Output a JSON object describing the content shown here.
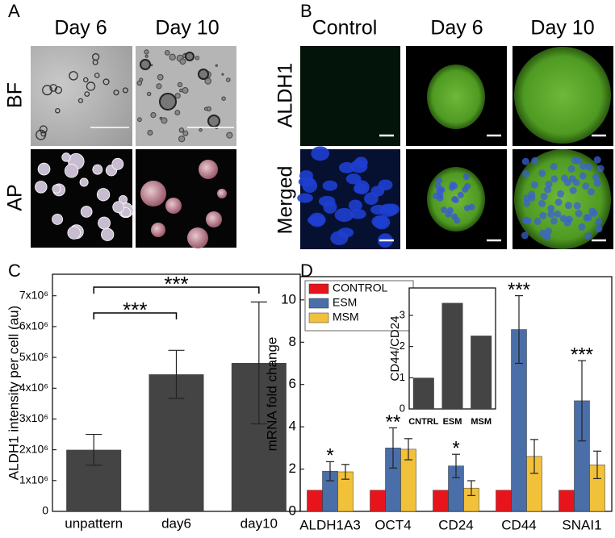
{
  "panel_labels": [
    "A",
    "B",
    "C",
    "D"
  ],
  "panel_a": {
    "columns": [
      "Day 6",
      "Day 10"
    ],
    "rows": [
      "BF",
      "AP"
    ]
  },
  "panel_b": {
    "columns": [
      "Control",
      "Day 6",
      "Day 10"
    ],
    "rows": [
      "ALDH1",
      "Merged"
    ]
  },
  "chart_data": [
    {
      "type": "bar",
      "ylabel": "ALDH1 intensity per cell (au)",
      "categories": [
        "unpattern",
        "day6",
        "day10"
      ],
      "values": [
        2000000,
        4450000,
        4820000
      ],
      "errors": [
        500000,
        780000,
        1980000
      ],
      "color": "#444444",
      "ylim": [
        0,
        7700000
      ],
      "yticks": [
        0,
        {
          "value": 1000000,
          "label": "1x10⁶"
        },
        {
          "value": 2000000,
          "label": "2x10⁶"
        },
        {
          "value": 3000000,
          "label": "3x10⁶"
        },
        {
          "value": 4000000,
          "label": "4x10⁶"
        },
        {
          "value": 5000000,
          "label": "5x10⁶"
        },
        {
          "value": 6000000,
          "label": "6x10⁶"
        },
        {
          "value": 7000000,
          "label": "7x10⁶"
        }
      ],
      "significance": [
        "***",
        "***"
      ]
    },
    {
      "type": "grouped_bar",
      "ylabel": "mRNA fold change",
      "categories": [
        "ALDH1A3",
        "OCT4",
        "CD24",
        "CD44",
        "SNAI1"
      ],
      "series": [
        {
          "name": "CONTROL",
          "color": "#e8141c",
          "values": [
            1,
            1,
            1,
            1,
            1
          ]
        },
        {
          "name": "ESM",
          "color": "#4a6ea8",
          "values": [
            1.9,
            3.0,
            2.15,
            8.6,
            5.23
          ],
          "errors": [
            0.45,
            0.95,
            0.55,
            1.6,
            1.9
          ]
        },
        {
          "name": "MSM",
          "color": "#f2c13a",
          "values": [
            1.87,
            2.94,
            1.1,
            2.6,
            2.2
          ],
          "errors": [
            0.35,
            0.5,
            0.35,
            0.8,
            0.65
          ]
        }
      ],
      "significance": [
        "*",
        "**",
        "*",
        "***",
        "***"
      ],
      "ylim": [
        0,
        11.1
      ],
      "yticks": [
        0,
        2,
        4,
        6,
        8,
        10
      ]
    },
    {
      "type": "bar",
      "ylabel": "CD44/CD24",
      "categories": [
        "CNTRL",
        "ESM",
        "MSM"
      ],
      "values": [
        1,
        3.4,
        2.35
      ],
      "color": "#444444",
      "ylim": [
        0,
        3.88
      ],
      "yticks": [
        0,
        1,
        2,
        3
      ]
    }
  ]
}
